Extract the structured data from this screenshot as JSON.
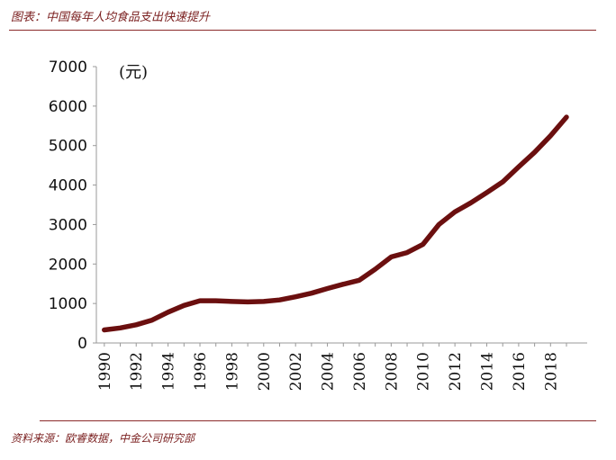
{
  "title": "图表：中国每年人均食品支出快速提升",
  "source": "资料来源：欧睿数据，中金公司研究部",
  "chart_data": {
    "type": "line",
    "title": "中国每年人均食品支出快速提升",
    "unit_label": "(元)",
    "xlabel": "",
    "ylabel": "",
    "ylim": [
      0,
      7000
    ],
    "yticks": [
      0,
      1000,
      2000,
      3000,
      4000,
      5000,
      6000,
      7000
    ],
    "xticks": [
      1990,
      1992,
      1994,
      1996,
      1998,
      2000,
      2002,
      2004,
      2006,
      2008,
      2010,
      2012,
      2014,
      2016,
      2018
    ],
    "grid": false,
    "series": [
      {
        "name": "人均食品支出",
        "color": "#6b0f0f",
        "x": [
          1990,
          1991,
          1992,
          1993,
          1994,
          1995,
          1996,
          1997,
          1998,
          1999,
          2000,
          2001,
          2002,
          2003,
          2004,
          2005,
          2006,
          2007,
          2008,
          2009,
          2010,
          2011,
          2012,
          2013,
          2014,
          2015,
          2016,
          2017,
          2018,
          2019
        ],
        "values": [
          330,
          380,
          460,
          580,
          780,
          950,
          1070,
          1070,
          1050,
          1040,
          1050,
          1090,
          1170,
          1260,
          1380,
          1490,
          1590,
          1870,
          2180,
          2290,
          2500,
          3000,
          3320,
          3550,
          3810,
          4080,
          4460,
          4830,
          5250,
          5720
        ]
      }
    ]
  }
}
